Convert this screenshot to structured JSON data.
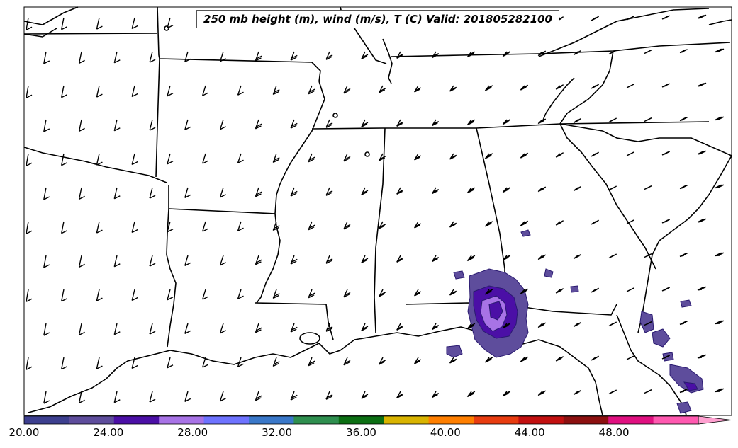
{
  "title": "250 mb height (m), wind (m/s), T (C) Valid: 201805282100",
  "colorbar": {
    "min": 20,
    "max": 52,
    "labels": [
      "20.00",
      "24.00",
      "28.00",
      "32.00",
      "36.00",
      "40.00",
      "44.00",
      "48.00"
    ],
    "label_values": [
      20,
      24,
      28,
      32,
      36,
      40,
      44,
      48
    ],
    "colors": [
      "#3d3f8f",
      "#5e4d9c",
      "#4b0fa6",
      "#a873e6",
      "#6e73ff",
      "#3a78c9",
      "#2f8f4f",
      "#0b6e12",
      "#d9b400",
      "#ff7f00",
      "#e83c10",
      "#c21010",
      "#8c1010",
      "#e01080",
      "#ff59b0",
      "#ffa0d0"
    ],
    "extend": "max"
  },
  "field_levels": {
    "low": "#5e4d9c",
    "mid": "#4b0fa6",
    "high": "#a873e6"
  },
  "region": "Southeastern United States and Gulf of Mexico",
  "features": [
    "state-boundaries",
    "coastlines",
    "wind-barbs",
    "wind-speed-shading"
  ]
}
